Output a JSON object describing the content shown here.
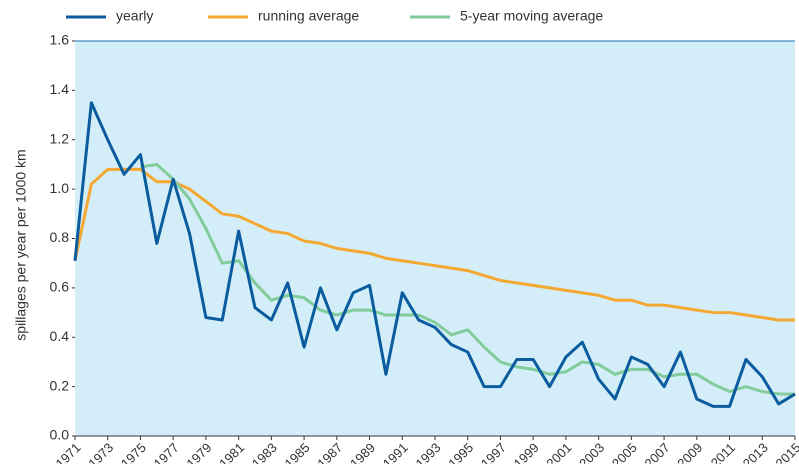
{
  "chart_data": {
    "type": "line",
    "y_label": "spillages per year per 1000 km",
    "x": [
      1971,
      1972,
      1973,
      1974,
      1975,
      1976,
      1977,
      1978,
      1979,
      1980,
      1981,
      1982,
      1983,
      1984,
      1985,
      1986,
      1987,
      1988,
      1989,
      1990,
      1991,
      1992,
      1993,
      1994,
      1995,
      1996,
      1997,
      1998,
      1999,
      2000,
      2001,
      2002,
      2003,
      2004,
      2005,
      2006,
      2007,
      2008,
      2009,
      2010,
      2011,
      2012,
      2013,
      2014,
      2015
    ],
    "xlim": [
      1971,
      2015
    ],
    "xticks": [
      1971,
      1973,
      1975,
      1977,
      1979,
      1981,
      1983,
      1985,
      1987,
      1989,
      1991,
      1993,
      1995,
      1997,
      1999,
      2001,
      2003,
      2005,
      2007,
      2009,
      2011,
      2013,
      2015
    ],
    "ylim": [
      0,
      1.6
    ],
    "yticks": [
      {
        "value": 0,
        "label": "0.0"
      },
      0.2,
      0.4,
      0.6,
      0.8,
      {
        "value": 1,
        "label": "1.0"
      },
      1.2,
      1.4,
      1.6
    ],
    "background": "#d4eef9",
    "legend": "top-left",
    "series": [
      {
        "name": "yearly",
        "color": "#0b5c9e",
        "values": [
          0.71,
          1.35,
          1.2,
          1.06,
          1.14,
          0.78,
          1.04,
          0.82,
          0.48,
          0.47,
          0.83,
          0.52,
          0.47,
          0.62,
          0.36,
          0.6,
          0.43,
          0.58,
          0.61,
          0.25,
          0.58,
          0.47,
          0.44,
          0.37,
          0.34,
          0.2,
          0.2,
          0.31,
          0.31,
          0.2,
          0.32,
          0.38,
          0.23,
          0.15,
          0.32,
          0.29,
          0.2,
          0.34,
          0.15,
          0.12,
          0.12,
          0.31,
          0.24,
          0.13,
          0.17
        ]
      },
      {
        "name": "running average",
        "color": "#f5a831",
        "values": [
          0.71,
          1.02,
          1.08,
          1.08,
          1.08,
          1.03,
          1.03,
          1.0,
          0.95,
          0.9,
          0.89,
          0.86,
          0.83,
          0.82,
          0.79,
          0.78,
          0.76,
          0.75,
          0.74,
          0.72,
          0.71,
          0.7,
          0.69,
          0.68,
          0.67,
          0.65,
          0.63,
          0.62,
          0.61,
          0.6,
          0.59,
          0.58,
          0.57,
          0.55,
          0.55,
          0.53,
          0.53,
          0.52,
          0.51,
          0.5,
          0.5,
          0.49,
          0.48,
          0.47,
          0.47
        ]
      },
      {
        "name": "5-year moving average",
        "color": "#82cc9c",
        "values": [
          null,
          null,
          null,
          null,
          1.09,
          1.1,
          1.04,
          0.96,
          0.84,
          0.7,
          0.71,
          0.62,
          0.55,
          0.57,
          0.56,
          0.51,
          0.49,
          0.51,
          0.51,
          0.49,
          0.49,
          0.49,
          0.46,
          0.41,
          0.43,
          0.36,
          0.3,
          0.28,
          0.27,
          0.25,
          0.26,
          0.3,
          0.29,
          0.25,
          0.27,
          0.27,
          0.24,
          0.25,
          0.25,
          0.21,
          0.18,
          0.2,
          0.18,
          0.17,
          0.17
        ]
      }
    ]
  }
}
